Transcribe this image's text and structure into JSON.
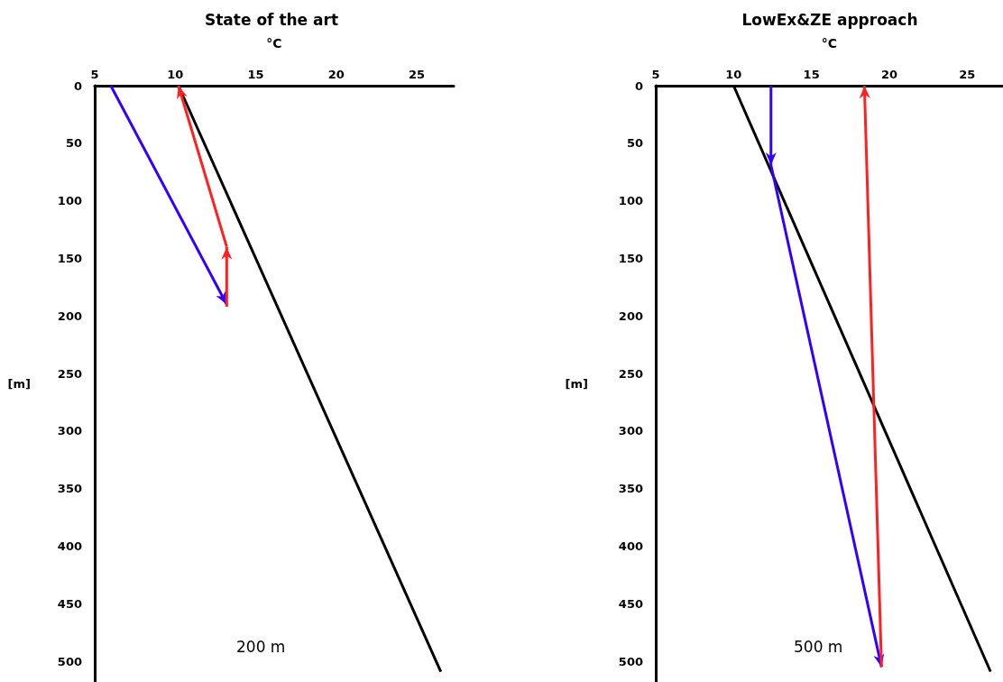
{
  "chart_data": [
    {
      "type": "line",
      "title": "State of the art",
      "xlabel": "°C",
      "ylabel": "[m]",
      "xlim": [
        5,
        27.3
      ],
      "xticks": [
        5,
        10,
        15,
        20,
        25
      ],
      "ylim": [
        518,
        0
      ],
      "yticks": [
        0,
        50,
        100,
        150,
        200,
        250,
        300,
        350,
        400,
        450,
        500
      ],
      "grid": false,
      "marker": "none",
      "line_style": "solid",
      "series": [
        {
          "color": "#000000",
          "x": [
            10.2,
            26.5
          ],
          "values": [
            0,
            509
          ]
        },
        {
          "color": "#3300ff",
          "x": [
            6,
            13.2
          ],
          "values": [
            0,
            190
          ]
        },
        {
          "color": "#ff2020",
          "x": [
            13.2,
            13.2,
            10.2
          ],
          "values": [
            192,
            140,
            0
          ]
        }
      ],
      "annotations": [
        "200 m"
      ]
    },
    {
      "type": "line",
      "title": "LowEx&ZE approach",
      "xlabel": "°C",
      "ylabel": "[m]",
      "xlim": [
        5,
        27.3
      ],
      "xticks": [
        5,
        10,
        15,
        20,
        25
      ],
      "ylim": [
        518,
        0
      ],
      "yticks": [
        0,
        50,
        100,
        150,
        200,
        250,
        300,
        350,
        400,
        450,
        500
      ],
      "grid": false,
      "marker": "none",
      "line_style": "solid",
      "series": [
        {
          "color": "#000000",
          "x": [
            10,
            26.5
          ],
          "values": [
            0,
            509
          ]
        },
        {
          "color": "#3300ff",
          "x": [
            12.4,
            12.4,
            19.5
          ],
          "values": [
            0,
            69,
            505
          ]
        },
        {
          "color": "#ff2020",
          "x": [
            19.5,
            18.4
          ],
          "values": [
            505,
            0
          ]
        }
      ],
      "annotations": [
        "500 m"
      ]
    }
  ]
}
